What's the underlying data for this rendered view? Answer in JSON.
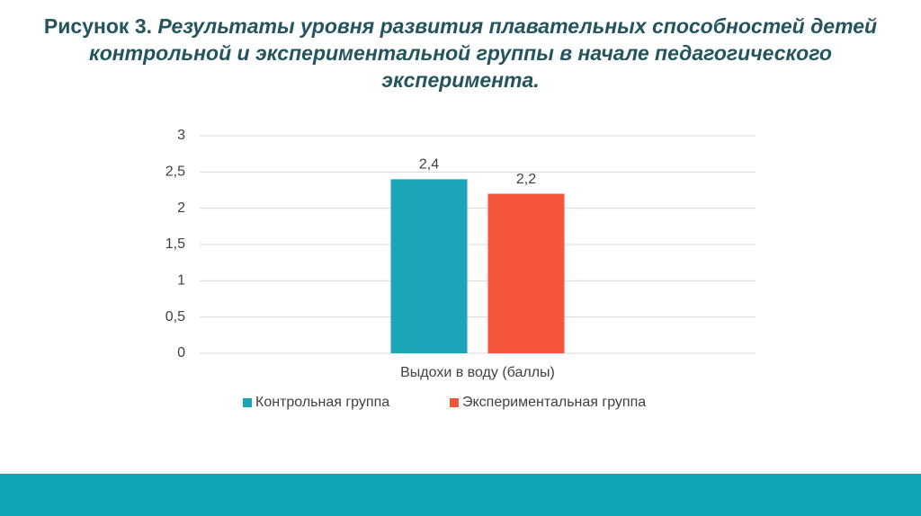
{
  "chart_data": {
    "type": "bar",
    "figure_label": "Рисунок 3.",
    "title": "Результаты уровня развития плавательных способностей детей контрольной и экспериментальной группы в начале педагогического эксперимента.",
    "categories": [
      "Выдохи в воду (баллы)"
    ],
    "series": [
      {
        "name": "Контрольная группа",
        "color": "#1aa6b8",
        "values": [
          2.4
        ],
        "value_labels": [
          "2,4"
        ]
      },
      {
        "name": "Экспериментальная группа",
        "color": "#f5553a",
        "values": [
          2.2
        ],
        "value_labels": [
          "2,2"
        ]
      }
    ],
    "ylim": [
      0,
      3
    ],
    "yticks": [
      0,
      {
        "value": 0.5,
        "label": "0,5"
      },
      1,
      {
        "value": 1.5,
        "label": "1,5"
      },
      2,
      {
        "value": 2.5,
        "label": "2,5"
      },
      3
    ],
    "grid": true,
    "legend": "bottom"
  }
}
